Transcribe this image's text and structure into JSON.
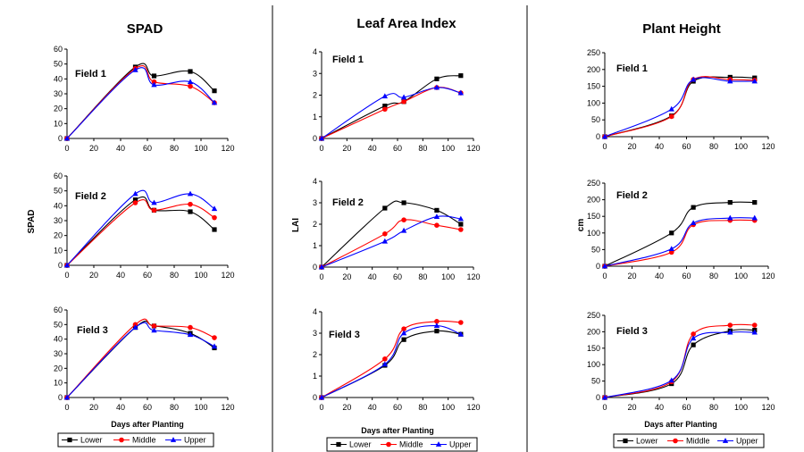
{
  "columns": [
    {
      "title": "SPAD",
      "ylabel": "SPAD"
    },
    {
      "title": "Leaf Area Index",
      "ylabel": "LAI"
    },
    {
      "title": "Plant Height",
      "ylabel": "cm"
    }
  ],
  "xlabel": "Days after Planting",
  "legend": [
    {
      "name": "Lower",
      "color": "#000000",
      "marker": "square"
    },
    {
      "name": "Middle",
      "color": "#ff0000",
      "marker": "circle"
    },
    {
      "name": "Upper",
      "color": "#0000ff",
      "marker": "triangle"
    }
  ],
  "chart_data": [
    {
      "type": "line",
      "title": "SPAD",
      "panel": "Field 1",
      "ylim": [
        0,
        60
      ],
      "yticks": [
        0,
        10,
        20,
        30,
        40,
        50,
        60
      ],
      "xlim": [
        0,
        120
      ],
      "xticks": [
        0,
        20,
        40,
        60,
        80,
        100,
        120
      ],
      "x": [
        0,
        51,
        65,
        92,
        110
      ],
      "series": [
        {
          "name": "Lower",
          "values": [
            0,
            48,
            42,
            45,
            32
          ]
        },
        {
          "name": "Middle",
          "values": [
            0,
            47,
            38,
            35,
            24
          ]
        },
        {
          "name": "Upper",
          "values": [
            0,
            46,
            36,
            38,
            24
          ]
        }
      ]
    },
    {
      "type": "line",
      "title": "Leaf Area Index",
      "panel": "Field 1",
      "ylim": [
        0,
        4
      ],
      "yticks": [
        0,
        1,
        2,
        3,
        4
      ],
      "xlim": [
        0,
        120
      ],
      "xticks": [
        0,
        20,
        40,
        60,
        80,
        100,
        120
      ],
      "x": [
        0,
        50,
        65,
        91,
        110
      ],
      "series": [
        {
          "name": "Lower",
          "values": [
            0,
            1.5,
            1.7,
            2.75,
            2.9
          ]
        },
        {
          "name": "Middle",
          "values": [
            0,
            1.35,
            1.7,
            2.35,
            2.1
          ]
        },
        {
          "name": "Upper",
          "values": [
            0,
            1.95,
            1.9,
            2.35,
            2.1
          ]
        }
      ]
    },
    {
      "type": "line",
      "title": "Plant Height",
      "panel": "Field 1",
      "ylim": [
        0,
        250
      ],
      "yticks": [
        0,
        50,
        100,
        150,
        200,
        250
      ],
      "xlim": [
        0,
        120
      ],
      "xticks": [
        0,
        20,
        40,
        60,
        80,
        100,
        120
      ],
      "x": [
        0,
        49,
        65,
        92,
        110
      ],
      "series": [
        {
          "name": "Lower",
          "values": [
            0,
            62,
            165,
            177,
            175
          ]
        },
        {
          "name": "Middle",
          "values": [
            0,
            60,
            170,
            170,
            168
          ]
        },
        {
          "name": "Upper",
          "values": [
            0,
            82,
            170,
            165,
            165
          ]
        }
      ]
    },
    {
      "type": "line",
      "title": "SPAD",
      "panel": "Field 2",
      "ylim": [
        0,
        60
      ],
      "yticks": [
        0,
        10,
        20,
        30,
        40,
        50,
        60
      ],
      "xlim": [
        0,
        120
      ],
      "xticks": [
        0,
        20,
        40,
        60,
        80,
        100,
        120
      ],
      "x": [
        0,
        51,
        65,
        92,
        110
      ],
      "series": [
        {
          "name": "Lower",
          "values": [
            0,
            44,
            37,
            36,
            24
          ]
        },
        {
          "name": "Middle",
          "values": [
            0,
            42,
            37,
            41,
            32
          ]
        },
        {
          "name": "Upper",
          "values": [
            0,
            48,
            42,
            48,
            38
          ]
        }
      ]
    },
    {
      "type": "line",
      "title": "Leaf Area Index",
      "panel": "Field 2",
      "ylim": [
        0,
        4
      ],
      "yticks": [
        0,
        1,
        2,
        3,
        4
      ],
      "xlim": [
        0,
        120
      ],
      "xticks": [
        0,
        20,
        40,
        60,
        80,
        100,
        120
      ],
      "x": [
        0,
        50,
        65,
        91,
        110
      ],
      "series": [
        {
          "name": "Lower",
          "values": [
            0,
            2.75,
            3.0,
            2.65,
            2.0
          ]
        },
        {
          "name": "Middle",
          "values": [
            0,
            1.55,
            2.2,
            1.95,
            1.75
          ]
        },
        {
          "name": "Upper",
          "values": [
            0,
            1.2,
            1.7,
            2.35,
            2.25
          ]
        }
      ]
    },
    {
      "type": "line",
      "title": "Plant Height",
      "panel": "Field 2",
      "ylim": [
        0,
        250
      ],
      "yticks": [
        0,
        50,
        100,
        150,
        200,
        250
      ],
      "xlim": [
        0,
        120
      ],
      "xticks": [
        0,
        20,
        40,
        60,
        80,
        100,
        120
      ],
      "x": [
        0,
        49,
        65,
        92,
        110
      ],
      "series": [
        {
          "name": "Lower",
          "values": [
            0,
            100,
            177,
            192,
            192
          ]
        },
        {
          "name": "Middle",
          "values": [
            0,
            42,
            125,
            138,
            138
          ]
        },
        {
          "name": "Upper",
          "values": [
            0,
            52,
            130,
            145,
            145
          ]
        }
      ]
    },
    {
      "type": "line",
      "title": "SPAD",
      "panel": "Field 3",
      "ylim": [
        0,
        60
      ],
      "yticks": [
        0,
        10,
        20,
        30,
        40,
        50,
        60
      ],
      "xlim": [
        0,
        120
      ],
      "xticks": [
        0,
        20,
        40,
        60,
        80,
        100,
        120
      ],
      "x": [
        0,
        51,
        65,
        92,
        110
      ],
      "series": [
        {
          "name": "Lower",
          "values": [
            0,
            48,
            49,
            44,
            34
          ]
        },
        {
          "name": "Middle",
          "values": [
            0,
            50,
            49,
            48,
            41
          ]
        },
        {
          "name": "Upper",
          "values": [
            0,
            48,
            46,
            43,
            35
          ]
        }
      ]
    },
    {
      "type": "line",
      "title": "Leaf Area Index",
      "panel": "Field 3",
      "ylim": [
        0,
        4
      ],
      "yticks": [
        0,
        1,
        2,
        3,
        4
      ],
      "xlim": [
        0,
        120
      ],
      "xticks": [
        0,
        20,
        40,
        60,
        80,
        100,
        120
      ],
      "x": [
        0,
        50,
        65,
        91,
        110
      ],
      "series": [
        {
          "name": "Lower",
          "values": [
            0,
            1.5,
            2.7,
            3.1,
            2.95
          ]
        },
        {
          "name": "Middle",
          "values": [
            0,
            1.8,
            3.2,
            3.55,
            3.5
          ]
        },
        {
          "name": "Upper",
          "values": [
            0,
            1.55,
            3.0,
            3.35,
            2.95
          ]
        }
      ]
    },
    {
      "type": "line",
      "title": "Plant Height",
      "panel": "Field 3",
      "ylim": [
        0,
        250
      ],
      "yticks": [
        0,
        50,
        100,
        150,
        200,
        250
      ],
      "xlim": [
        0,
        120
      ],
      "xticks": [
        0,
        20,
        40,
        60,
        80,
        100,
        120
      ],
      "x": [
        0,
        49,
        65,
        92,
        110
      ],
      "series": [
        {
          "name": "Lower",
          "values": [
            0,
            42,
            160,
            203,
            205
          ]
        },
        {
          "name": "Middle",
          "values": [
            0,
            48,
            193,
            220,
            220
          ]
        },
        {
          "name": "Upper",
          "values": [
            0,
            52,
            180,
            198,
            198
          ]
        }
      ]
    }
  ]
}
